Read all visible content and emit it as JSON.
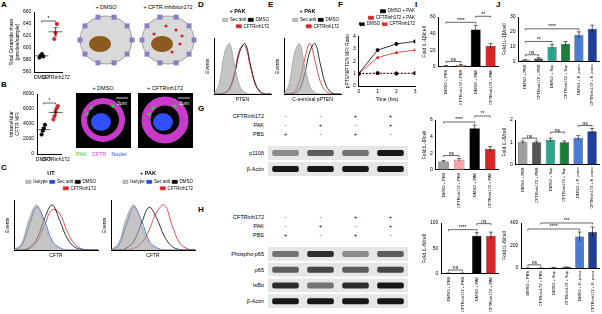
{
  "panel_labels": [
    "A",
    "B",
    "C",
    "D",
    "E",
    "F",
    "G",
    "H",
    "I",
    "J"
  ],
  "chart_data": [
    {
      "type": "dot",
      "categories": [
        "DMSO",
        "CFTRinh172"
      ],
      "values": [
        [
          584,
          588,
          590,
          586
        ],
        [
          615,
          625,
          640
        ]
      ],
      "colors": [
        "#000000",
        "#d62728"
      ],
      "means": [
        587,
        627
      ],
      "errors": [
        1.5,
        7
      ],
      "ylabel": "Total Ceramide mass (pmoles/sample)",
      "ylim": [
        560,
        660
      ],
      "yticks": [
        560,
        580,
        600,
        620,
        640,
        660
      ],
      "comparisons": [
        {
          "pair": [
            0,
            1
          ],
          "label": "*"
        }
      ],
      "marker": "circle",
      "grid": false
    },
    {
      "type": "dot",
      "categories": [
        "DMSO",
        "CFTRinh172"
      ],
      "values": [
        [
          2600,
          3100,
          3400,
          3900
        ],
        [
          4600,
          5000,
          5600,
          6100,
          6400
        ]
      ],
      "colors": [
        "#000000",
        "#d62728"
      ],
      "means": [
        3250,
        5540
      ],
      "errors": [
        280,
        330
      ],
      "ylabel": "Intracellular CFTR MFI",
      "ylim": [
        0,
        8000
      ],
      "yticks": [
        0,
        2000,
        4000,
        6000,
        8000
      ],
      "comparisons": [
        {
          "pair": [
            0,
            1
          ],
          "label": "*"
        }
      ],
      "marker": "circle",
      "grid": false
    },
    {
      "type": "histogram",
      "title": "UT",
      "xlabel": "CFTR",
      "ylabel": "Events",
      "x": [
        0,
        1,
        2,
        3,
        4,
        5,
        6,
        7,
        8,
        9,
        10,
        11
      ],
      "xlim": [
        0,
        11
      ],
      "ylim": [
        0,
        110
      ],
      "tick_labels": false,
      "grid": false,
      "legend": "top",
      "series": [
        {
          "name": "Isotype",
          "type": "area",
          "color": "#9e9e9e",
          "values": [
            0,
            15,
            70,
            100,
            55,
            15,
            3,
            0,
            0,
            0,
            0,
            0
          ]
        },
        {
          "name": "Sec anti",
          "type": "line",
          "color": "#1f4fd8",
          "values": [
            0,
            10,
            55,
            95,
            65,
            20,
            5,
            0,
            0,
            0,
            0,
            0
          ]
        },
        {
          "name": "DMSO",
          "type": "line",
          "color": "#000000",
          "values": [
            0,
            0,
            5,
            25,
            70,
            100,
            65,
            25,
            6,
            1,
            0,
            0
          ]
        },
        {
          "name": "CFTRinh172",
          "type": "line",
          "color": "#d62728",
          "values": [
            0,
            0,
            3,
            18,
            55,
            90,
            80,
            40,
            12,
            2,
            0,
            0
          ]
        }
      ]
    },
    {
      "type": "histogram",
      "title": "+ PAK",
      "xlabel": "CFTR",
      "ylabel": "Events",
      "x": [
        0,
        1,
        2,
        3,
        4,
        5,
        6,
        7,
        8,
        9,
        10,
        11
      ],
      "xlim": [
        0,
        11
      ],
      "ylim": [
        0,
        110
      ],
      "tick_labels": false,
      "grid": false,
      "legend": "top",
      "series": [
        {
          "name": "Isotype",
          "type": "area",
          "color": "#9e9e9e",
          "values": [
            0,
            15,
            70,
            100,
            55,
            15,
            3,
            0,
            0,
            0,
            0,
            0
          ]
        },
        {
          "name": "Sec anti",
          "type": "line",
          "color": "#1f4fd8",
          "values": [
            0,
            10,
            55,
            95,
            65,
            20,
            5,
            0,
            0,
            0,
            0,
            0
          ]
        },
        {
          "name": "DMSO",
          "type": "line",
          "color": "#000000",
          "values": [
            0,
            0,
            4,
            20,
            60,
            95,
            70,
            30,
            8,
            1,
            0,
            0
          ]
        },
        {
          "name": "CFTRinh172",
          "type": "line",
          "color": "#d62728",
          "values": [
            0,
            0,
            0,
            4,
            15,
            45,
            85,
            100,
            55,
            15,
            3,
            0
          ]
        }
      ]
    },
    {
      "type": "histogram",
      "title": "+ PAK",
      "xlabel": "PTEN",
      "ylabel": "Events",
      "x": [
        0,
        1,
        2,
        3,
        4,
        5,
        6,
        7,
        8,
        9,
        10,
        11
      ],
      "xlim": [
        0,
        11
      ],
      "ylim": [
        0,
        110
      ],
      "tick_labels": false,
      "grid": false,
      "legend": "top",
      "series": [
        {
          "name": "Sec anti",
          "type": "area",
          "color": "#9e9e9e",
          "values": [
            0,
            20,
            80,
            100,
            55,
            15,
            3,
            0,
            0,
            0,
            0,
            0
          ]
        },
        {
          "name": "DMSO",
          "type": "line",
          "color": "#000000",
          "values": [
            0,
            0,
            2,
            10,
            40,
            85,
            100,
            60,
            20,
            4,
            0,
            0
          ]
        },
        {
          "name": "CFTRinh172",
          "type": "line",
          "color": "#d62728",
          "values": [
            0,
            0,
            2,
            12,
            45,
            90,
            95,
            55,
            18,
            3,
            0,
            0
          ]
        }
      ]
    },
    {
      "type": "histogram",
      "title": "+ PAK",
      "xlabel": "C-terminal pPTEN",
      "ylabel": "Events",
      "x": [
        0,
        1,
        2,
        3,
        4,
        5,
        6,
        7,
        8,
        9,
        10,
        11
      ],
      "xlim": [
        0,
        11
      ],
      "ylim": [
        0,
        110
      ],
      "tick_labels": false,
      "grid": false,
      "legend": "top",
      "series": [
        {
          "name": "Sec anti",
          "type": "area",
          "color": "#9e9e9e",
          "values": [
            0,
            20,
            80,
            100,
            55,
            15,
            3,
            0,
            0,
            0,
            0,
            0
          ]
        },
        {
          "name": "DMSO",
          "type": "line",
          "color": "#000000",
          "values": [
            0,
            0,
            2,
            10,
            40,
            85,
            100,
            60,
            20,
            4,
            0,
            0
          ]
        },
        {
          "name": "CFTRinh172",
          "type": "line",
          "color": "#d62728",
          "values": [
            0,
            0,
            5,
            25,
            70,
            100,
            65,
            25,
            6,
            1,
            0,
            0
          ]
        }
      ]
    },
    {
      "type": "line",
      "xlabel": "Time (hrs)",
      "ylabel": "pPTEN/PTEN MFI Ratio",
      "x": [
        0,
        1,
        2,
        3
      ],
      "xlim": [
        0,
        3
      ],
      "xticks": [
        0,
        1,
        2,
        3
      ],
      "ylim": [
        0,
        4
      ],
      "yticks": [
        0,
        1,
        2,
        3,
        4
      ],
      "grid": false,
      "legend": "top",
      "series": [
        {
          "name": "DMSO + PAK",
          "color": "#000000",
          "line_style": "solid",
          "marker": "circle",
          "values": [
            1,
            2.9,
            3.4,
            3.6
          ]
        },
        {
          "name": "CFTRinh172 + PAK",
          "color": "#d62728",
          "line_style": "solid",
          "marker": "triangle",
          "values": [
            1,
            2.3,
            2.7,
            2.9
          ]
        },
        {
          "name": "DMSO",
          "color": "#000000",
          "line_style": "dashed",
          "marker": "circle",
          "values": [
            1,
            1.05,
            1.0,
            1.05
          ]
        },
        {
          "name": "CFTRinh172",
          "color": "#d62728",
          "line_style": "dashed",
          "marker": "triangle",
          "values": [
            1,
            1.0,
            1.05,
            1.0
          ]
        }
      ]
    },
    {
      "type": "bar",
      "categories": [
        "DMSO + PBS",
        "CFTRinh172 + PBS",
        "DMSO + PAK",
        "CFTRinh172 + PAK"
      ],
      "values": [
        1,
        2,
        45,
        25
      ],
      "errors": [
        0.5,
        0.8,
        5,
        3
      ],
      "colors": [
        "#9e9e9e",
        "#f4a6a6",
        "#000000",
        "#d62728"
      ],
      "ylabel": "Fold IL-1β/cell",
      "ylim": [
        0,
        60
      ],
      "yticks": [
        0,
        20,
        40,
        60
      ],
      "grid": false,
      "comparisons": [
        {
          "pair": [
            0,
            1
          ],
          "label": "ns"
        },
        {
          "pair": [
            0,
            2
          ],
          "label": "****"
        },
        {
          "pair": [
            2,
            3
          ],
          "label": "**"
        }
      ]
    },
    {
      "type": "bar",
      "categories": [
        "DMSO + PBS",
        "CFTRinh172 + PBS",
        "DMSO + PAK",
        "CFTRinh172 + PAK"
      ],
      "values": [
        1,
        1.2,
        5,
        2.5
      ],
      "errors": [
        0.1,
        0.15,
        0.4,
        0.3
      ],
      "colors": [
        "#9e9e9e",
        "#f4a6a6",
        "#000000",
        "#d62728"
      ],
      "ylabel": "Fold IL-8/cell",
      "ylim": [
        0,
        6
      ],
      "yticks": [
        0,
        2,
        4,
        6
      ],
      "grid": false,
      "comparisons": [
        {
          "pair": [
            0,
            1
          ],
          "label": "ns"
        },
        {
          "pair": [
            0,
            2
          ],
          "label": "****"
        },
        {
          "pair": [
            2,
            3
          ],
          "label": "**"
        }
      ]
    },
    {
      "type": "bar",
      "categories": [
        "DMSO + PBS",
        "CFTRinh172 + PBS",
        "DMSO + PAK",
        "CFTRinh172 + PAK"
      ],
      "values": [
        1,
        1,
        75,
        75
      ],
      "errors": [
        0.5,
        0.5,
        6,
        7
      ],
      "colors": [
        "#9e9e9e",
        "#f4a6a6",
        "#000000",
        "#d62728"
      ],
      "ylabel": "Fold IL-6/cell",
      "ylim": [
        0,
        100
      ],
      "yticks": [
        0,
        50,
        100
      ],
      "grid": false,
      "comparisons": [
        {
          "pair": [
            0,
            1
          ],
          "label": "ns"
        },
        {
          "pair": [
            0,
            2
          ],
          "label": "****"
        },
        {
          "pair": [
            2,
            3
          ],
          "label": "ns"
        }
      ]
    },
    {
      "type": "bar",
      "categories": [
        "DMSO + PBS",
        "CFTRinh172 + PBS",
        "DMSO + Sup",
        "CFTRinh172 + Sup",
        "DMSO + K. pneu",
        "CFTRinh172 + K. pneu"
      ],
      "values": [
        1,
        2,
        10,
        12,
        18,
        22
      ],
      "errors": [
        0.3,
        0.5,
        1.5,
        1.5,
        2,
        2.5
      ],
      "colors": [
        "#9e9e9e",
        "#555555",
        "#2ca58d",
        "#1b7f3a",
        "#4a7bd0",
        "#1f3f9f"
      ],
      "ylabel": "Fold IL-1β/cell",
      "ylim": [
        0,
        30
      ],
      "yticks": [
        0,
        10,
        20,
        30
      ],
      "grid": false,
      "comparisons": [
        {
          "pair": [
            0,
            1
          ],
          "label": "ns"
        },
        {
          "pair": [
            0,
            2
          ],
          "label": "**"
        },
        {
          "pair": [
            0,
            4
          ],
          "label": "****"
        }
      ]
    },
    {
      "type": "bar",
      "categories": [
        "DMSO + PBS",
        "CFTRinh172 + PBS",
        "DMSO + Sup",
        "CFTRinh172 + Sup",
        "DMSO + K. pneu",
        "CFTRinh172 + K. pneu"
      ],
      "values": [
        1,
        1,
        1.1,
        1,
        1.2,
        1.5
      ],
      "errors": [
        0.05,
        0.05,
        0.08,
        0.06,
        0.1,
        0.12
      ],
      "colors": [
        "#9e9e9e",
        "#555555",
        "#2ca58d",
        "#1b7f3a",
        "#4a7bd0",
        "#1f3f9f"
      ],
      "ylabel": "Fold IL-8/cell",
      "ylim": [
        0,
        2
      ],
      "yticks": [
        0,
        1,
        2
      ],
      "grid": false,
      "comparisons": [
        {
          "pair": [
            0,
            1
          ],
          "label": "ns"
        },
        {
          "pair": [
            2,
            3
          ],
          "label": "ns"
        },
        {
          "pair": [
            4,
            5
          ],
          "label": "ns"
        }
      ]
    },
    {
      "type": "bar",
      "categories": [
        "DMSO + PBS",
        "CFTRinh172 + PBS",
        "DMSO + Sup",
        "CFTRinh172 + Sup",
        "DMSO + K. pneu",
        "CFTRinh172 + K. pneu"
      ],
      "values": [
        1,
        1,
        5,
        8,
        280,
        320
      ],
      "errors": [
        0.5,
        0.5,
        1,
        2,
        40,
        45
      ],
      "colors": [
        "#9e9e9e",
        "#555555",
        "#2ca58d",
        "#1b7f3a",
        "#4a7bd0",
        "#1f3f9f"
      ],
      "ylabel": "Fold IL-6/cell",
      "ylim": [
        0,
        400
      ],
      "yticks": [
        0,
        200,
        400
      ],
      "grid": false,
      "comparisons": [
        {
          "pair": [
            0,
            1
          ],
          "label": "ns"
        },
        {
          "pair": [
            0,
            4
          ],
          "label": "****"
        },
        {
          "pair": [
            1,
            5
          ],
          "label": "***"
        }
      ]
    }
  ],
  "diagram_A": {
    "labels": [
      "+ DMSO",
      "+ CFTR inhibitor172"
    ]
  },
  "images_B": {
    "panels": [
      "+ DMSO",
      "+ CFTRinh172"
    ],
    "scale_bar": "3μm",
    "channels": [
      {
        "name": "PAK",
        "color": "#33cc33"
      },
      {
        "name": "CFTR",
        "color": "#e040e0"
      },
      {
        "name": "Nuclei",
        "color": "#3050ff"
      }
    ]
  },
  "blots": [
    {
      "conditions": [
        {
          "label": "CFTRinh172",
          "signs": [
            "-",
            "-",
            "+",
            "+"
          ]
        },
        {
          "label": "PAK",
          "signs": [
            "-",
            "+",
            "-",
            "+"
          ]
        },
        {
          "label": "PBS",
          "signs": [
            "+",
            "-",
            "+",
            "-"
          ]
        }
      ],
      "bands": [
        {
          "label": "p110δ",
          "intensity": [
            0.4,
            0.6,
            0.5,
            0.9
          ]
        },
        {
          "label": "β-Actin",
          "intensity": [
            0.9,
            0.9,
            0.9,
            0.9
          ]
        }
      ]
    },
    {
      "conditions": [
        {
          "label": "CFTRinh172",
          "signs": [
            "-",
            "-",
            "+",
            "+"
          ]
        },
        {
          "label": "PAK",
          "signs": [
            "-",
            "+",
            "-",
            "+"
          ]
        },
        {
          "label": "PBS",
          "signs": [
            "+",
            "-",
            "+",
            "-"
          ]
        }
      ],
      "bands": [
        {
          "label": "Phospho-p65",
          "intensity": [
            0.5,
            0.8,
            0.4,
            0.6
          ]
        },
        {
          "label": "p65",
          "intensity": [
            0.6,
            0.7,
            0.6,
            0.7
          ]
        },
        {
          "label": "IκBα",
          "intensity": [
            0.8,
            0.5,
            0.8,
            0.9
          ]
        },
        {
          "label": "β-Actin",
          "intensity": [
            0.9,
            0.9,
            0.9,
            0.9
          ]
        }
      ]
    }
  ]
}
